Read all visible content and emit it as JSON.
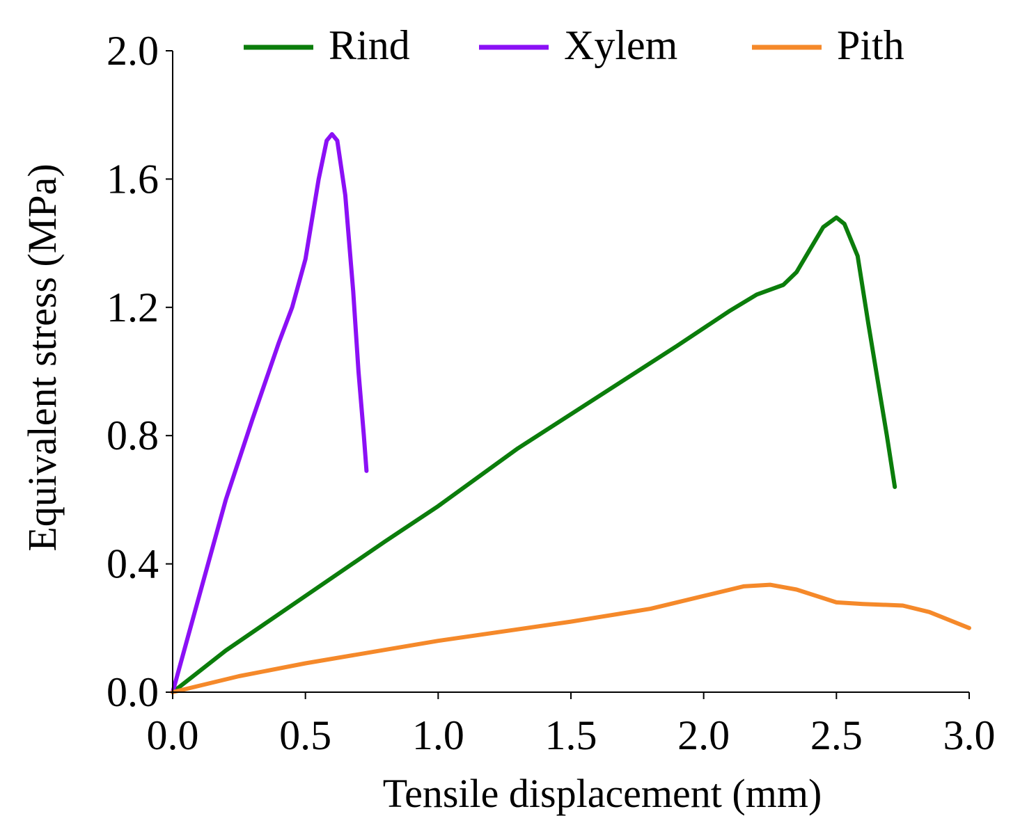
{
  "chart_data": {
    "type": "line",
    "title": "",
    "xlabel": "Tensile displacement (mm)",
    "ylabel": "Equivalent stress (MPa)",
    "xlim": [
      0,
      3.0
    ],
    "ylim": [
      0,
      2.0
    ],
    "xticks": [
      0,
      0.5,
      1.0,
      1.5,
      2.0,
      2.5,
      3.0
    ],
    "xtick_labels": [
      "0.0",
      "0.5",
      "1.0",
      "1.5",
      "2.0",
      "2.5",
      "3.0"
    ],
    "yticks": [
      0,
      0.4,
      0.8,
      1.2,
      1.6,
      2.0
    ],
    "ytick_labels": [
      "0.0",
      "0.4",
      "0.8",
      "1.2",
      "1.6",
      "2.0"
    ],
    "grid": false,
    "legend_position": "top",
    "series": [
      {
        "name": "Rind",
        "color": "#0b7d0b",
        "x": [
          0,
          0.2,
          0.5,
          0.8,
          1.0,
          1.3,
          1.6,
          1.9,
          2.1,
          2.2,
          2.3,
          2.35,
          2.4,
          2.45,
          2.5,
          2.53,
          2.58,
          2.62,
          2.66,
          2.69,
          2.72
        ],
        "y": [
          0,
          0.13,
          0.3,
          0.47,
          0.58,
          0.76,
          0.92,
          1.08,
          1.19,
          1.24,
          1.27,
          1.31,
          1.38,
          1.45,
          1.48,
          1.46,
          1.36,
          1.15,
          0.95,
          0.8,
          0.64
        ]
      },
      {
        "name": "Xylem",
        "color": "#8b10f5",
        "x": [
          0,
          0.1,
          0.2,
          0.3,
          0.4,
          0.45,
          0.5,
          0.55,
          0.58,
          0.6,
          0.62,
          0.65,
          0.68,
          0.7,
          0.72,
          0.73
        ],
        "y": [
          0,
          0.3,
          0.6,
          0.85,
          1.09,
          1.2,
          1.35,
          1.6,
          1.72,
          1.74,
          1.72,
          1.55,
          1.25,
          1.0,
          0.8,
          0.69
        ]
      },
      {
        "name": "Pith",
        "color": "#f5892a",
        "x": [
          0,
          0.25,
          0.5,
          1.0,
          1.5,
          1.8,
          2.0,
          2.15,
          2.25,
          2.35,
          2.5,
          2.6,
          2.75,
          2.85,
          3.0
        ],
        "y": [
          0,
          0.05,
          0.09,
          0.16,
          0.22,
          0.26,
          0.3,
          0.33,
          0.335,
          0.32,
          0.28,
          0.275,
          0.27,
          0.25,
          0.2
        ]
      }
    ]
  }
}
